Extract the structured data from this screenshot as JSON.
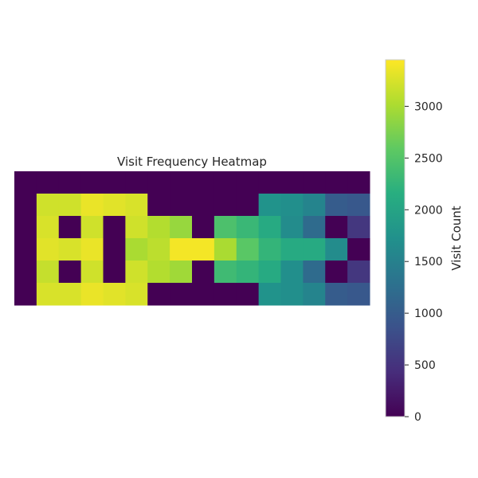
{
  "chart_data": {
    "type": "heatmap",
    "title": "Visit Frequency Heatmap",
    "rows": 6,
    "cols": 16,
    "values": [
      [
        0,
        0,
        0,
        0,
        0,
        0,
        0,
        0,
        0,
        0,
        0,
        0,
        0,
        0,
        0,
        0
      ],
      [
        0,
        3200,
        3200,
        3350,
        3300,
        3250,
        0,
        0,
        0,
        0,
        0,
        1750,
        1700,
        1550,
        1000,
        950
      ],
      [
        0,
        3250,
        0,
        3200,
        0,
        3200,
        3050,
        2900,
        0,
        2450,
        2300,
        2100,
        1650,
        1200,
        0,
        550
      ],
      [
        0,
        3300,
        3250,
        3350,
        0,
        3000,
        3100,
        3400,
        3400,
        3000,
        2550,
        2250,
        2100,
        2100,
        1650,
        0
      ],
      [
        0,
        3150,
        0,
        3200,
        0,
        3200,
        3050,
        2950,
        0,
        2350,
        2250,
        2100,
        1700,
        1200,
        0,
        550
      ],
      [
        0,
        3250,
        3250,
        3350,
        3300,
        3250,
        0,
        0,
        0,
        0,
        0,
        1750,
        1700,
        1550,
        1000,
        950
      ]
    ],
    "colorbar": {
      "label": "Visit Count",
      "min": 0,
      "max": 3450,
      "ticks": [
        0,
        500,
        1000,
        1500,
        2000,
        2500,
        3000
      ],
      "colormap": "viridis"
    },
    "grid": false
  }
}
